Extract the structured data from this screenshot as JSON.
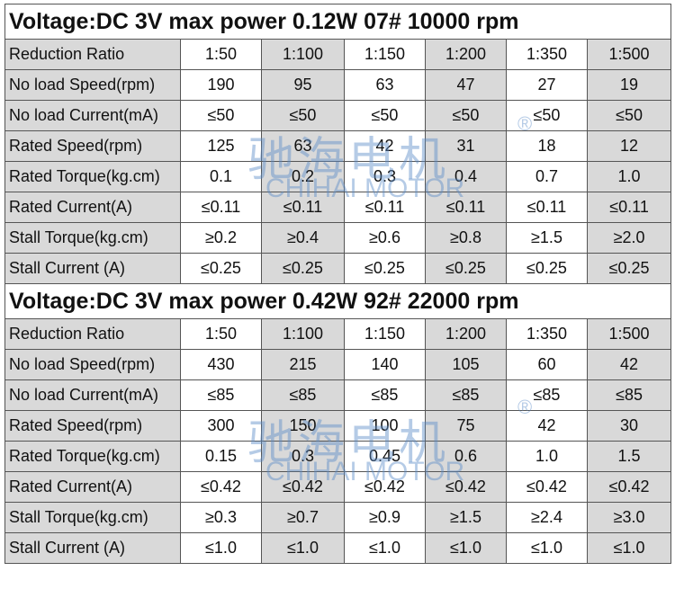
{
  "sections": [
    {
      "title": "Voltage:DC 3V  max power 0.12W   07# 10000 rpm",
      "rows": [
        [
          "Reduction Ratio",
          "1:50",
          "1:100",
          "1:150",
          "1:200",
          "1:350",
          "1:500"
        ],
        [
          "No load Speed(rpm)",
          "190",
          "95",
          "63",
          "47",
          "27",
          "19"
        ],
        [
          "No load Current(mA)",
          "≤50",
          "≤50",
          "≤50",
          "≤50",
          "≤50",
          "≤50"
        ],
        [
          "Rated Speed(rpm)",
          "125",
          "63",
          "42",
          "31",
          "18",
          "12"
        ],
        [
          "Rated Torque(kg.cm)",
          "0.1",
          "0.2",
          "0.3",
          "0.4",
          "0.7",
          "1.0"
        ],
        [
          "Rated Current(A)",
          "≤0.11",
          "≤0.11",
          "≤0.11",
          "≤0.11",
          "≤0.11",
          "≤0.11"
        ],
        [
          "Stall Torque(kg.cm)",
          "≥0.2",
          "≥0.4",
          "≥0.6",
          "≥0.8",
          "≥1.5",
          "≥2.0"
        ],
        [
          "Stall Current (A)",
          "≤0.25",
          "≤0.25",
          "≤0.25",
          "≤0.25",
          "≤0.25",
          "≤0.25"
        ]
      ]
    },
    {
      "title": "Voltage:DC 3V  max power 0.42W   92# 22000 rpm",
      "rows": [
        [
          "Reduction Ratio",
          "1:50",
          "1:100",
          "1:150",
          "1:200",
          "1:350",
          "1:500"
        ],
        [
          "No load Speed(rpm)",
          "430",
          "215",
          "140",
          "105",
          "60",
          "42"
        ],
        [
          "No load Current(mA)",
          "≤85",
          "≤85",
          "≤85",
          "≤85",
          "≤85",
          "≤85"
        ],
        [
          "Rated Speed(rpm)",
          "300",
          "150",
          "100",
          "75",
          "42",
          "30"
        ],
        [
          "Rated Torque(kg.cm)",
          "0.15",
          "0.3",
          "0.45",
          "0.6",
          "1.0",
          "1.5"
        ],
        [
          "Rated Current(A)",
          "≤0.42",
          "≤0.42",
          "≤0.42",
          "≤0.42",
          "≤0.42",
          "≤0.42"
        ],
        [
          "Stall Torque(kg.cm)",
          "≥0.3",
          "≥0.7",
          "≥0.9",
          "≥1.5",
          "≥2.4",
          "≥3.0"
        ],
        [
          "Stall Current (A)",
          "≤1.0",
          "≤1.0",
          "≤1.0",
          "≤1.0",
          "≤1.0",
          "≤1.0"
        ]
      ]
    }
  ],
  "watermark": {
    "chinese": "驰海电机",
    "english": "CHIHAI MOTOR",
    "mark": "®"
  }
}
